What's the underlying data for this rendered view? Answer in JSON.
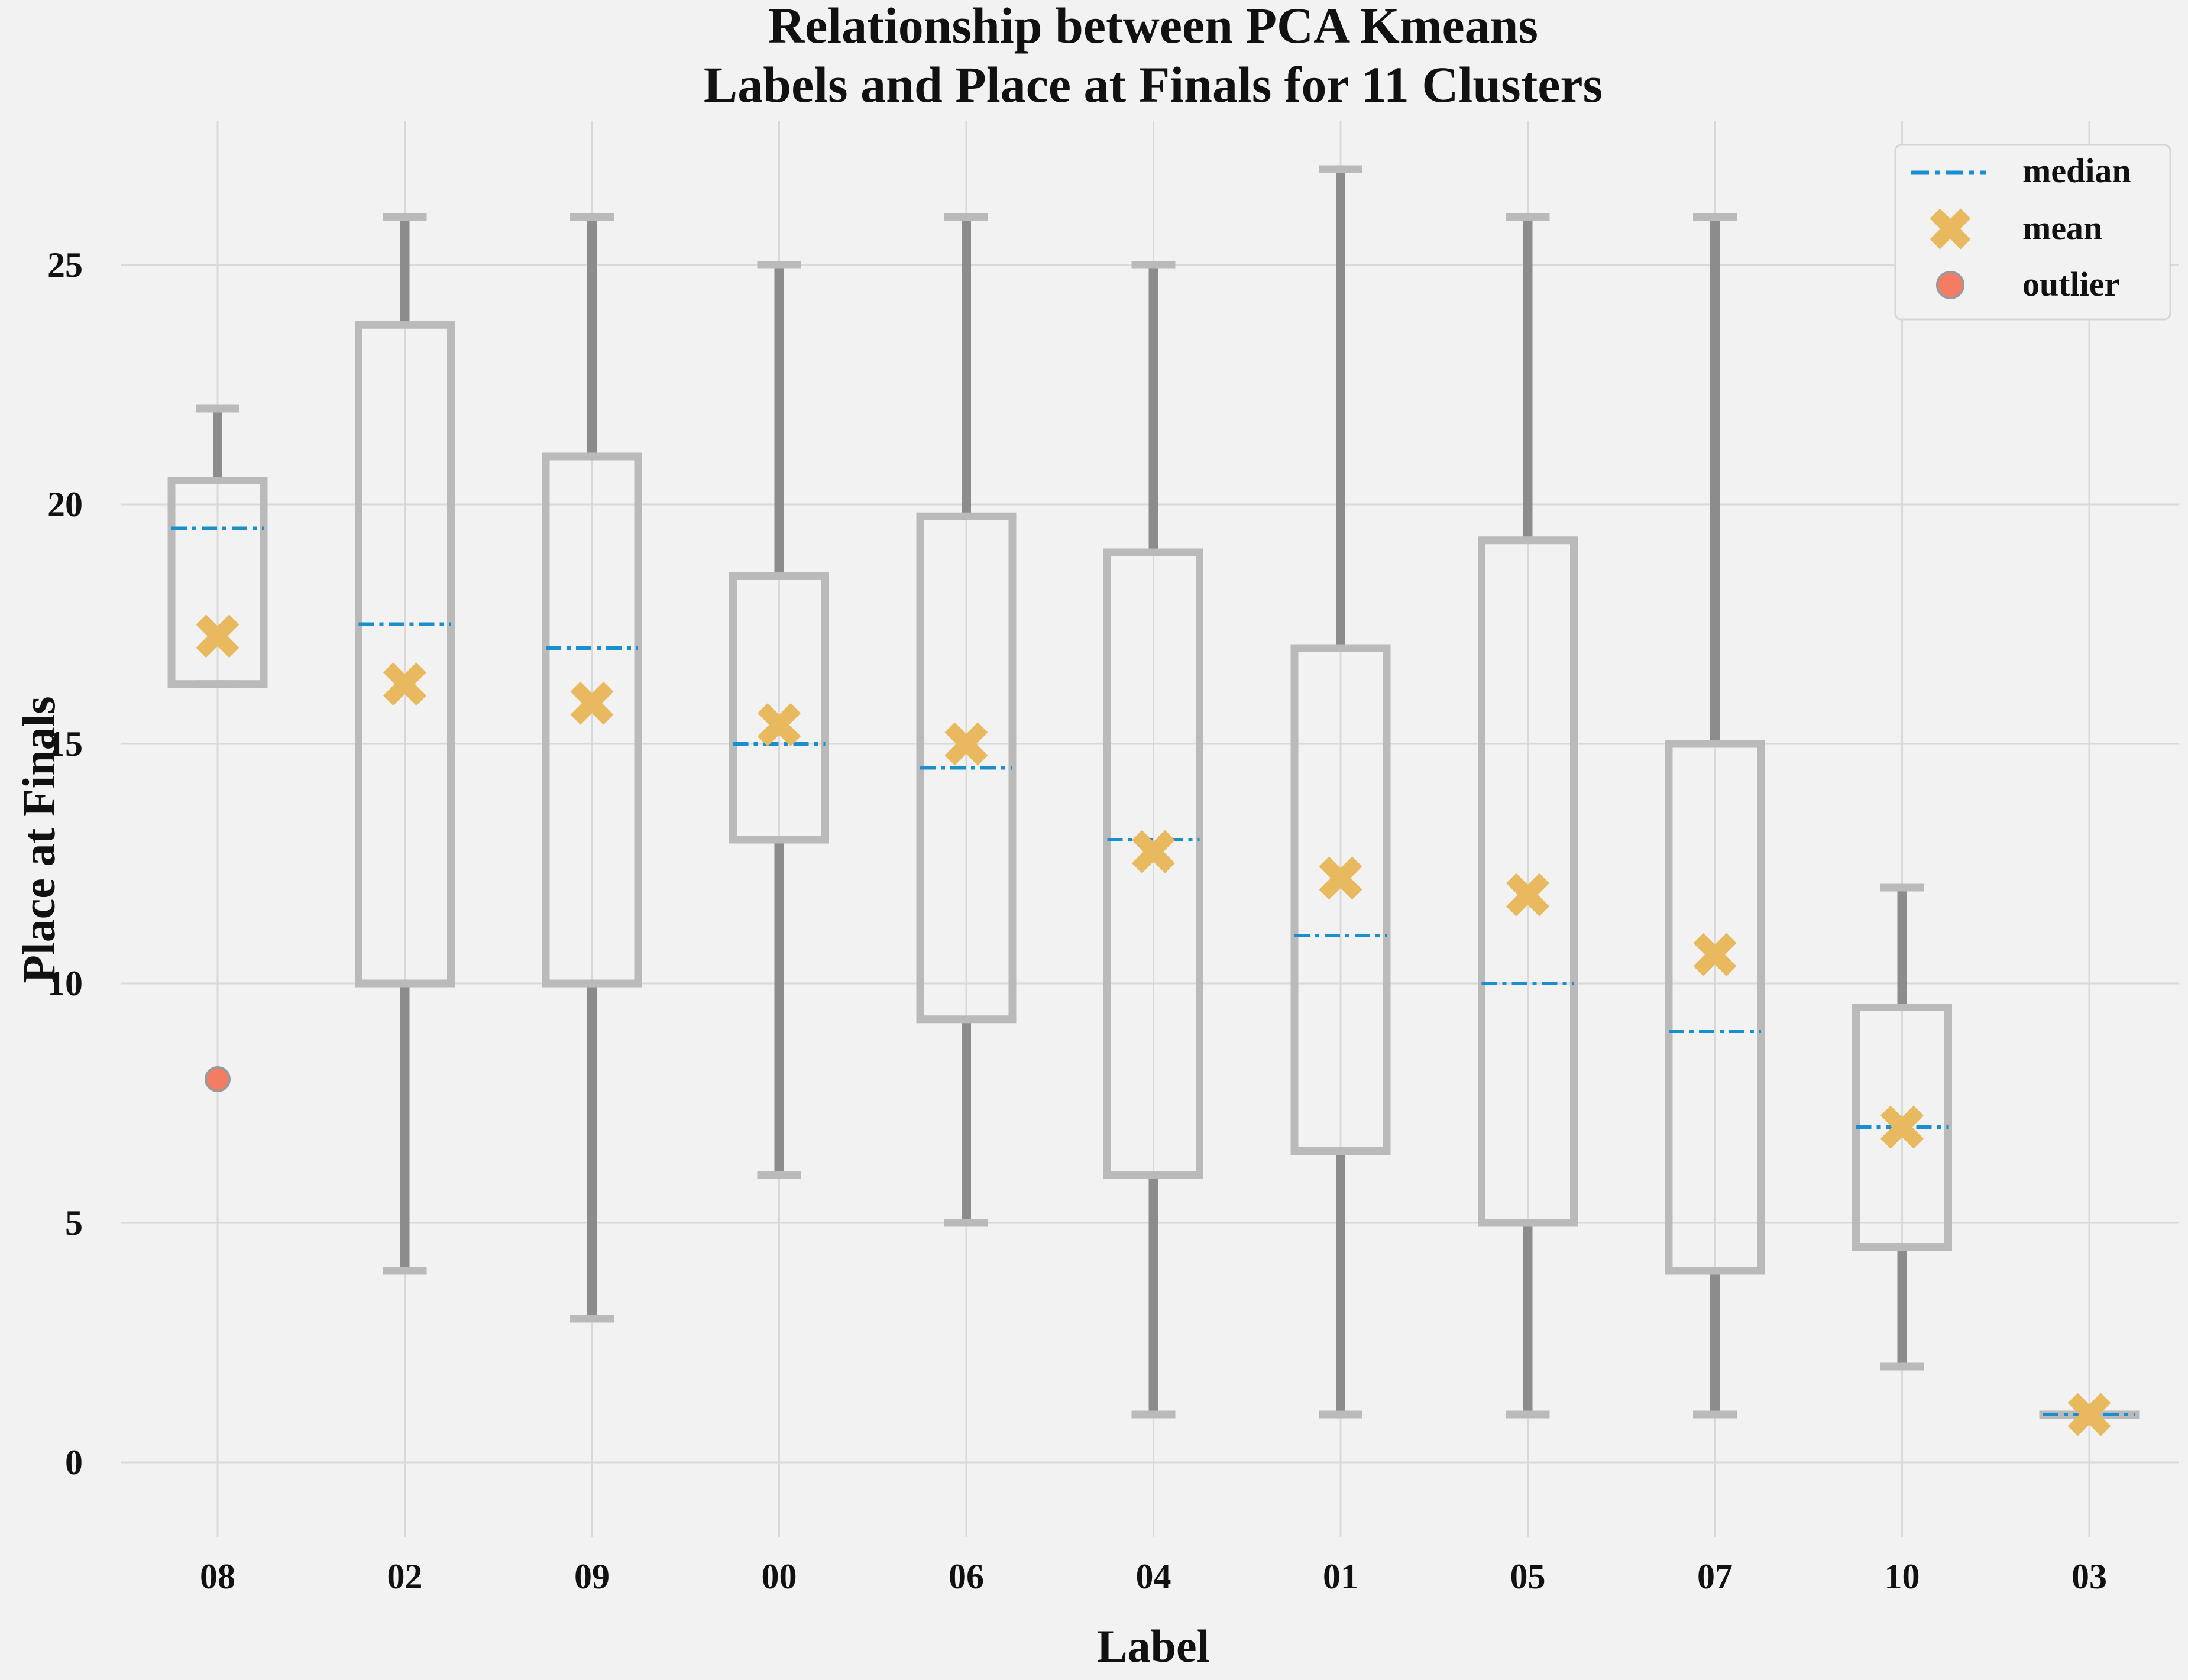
{
  "chart_data": {
    "type": "box",
    "title_lines": [
      "Relationship between PCA Kmeans",
      "Labels and Place at Finals for 11 Clusters"
    ],
    "xlabel": "Label",
    "ylabel": "Place at Finals",
    "ylim": [
      -2,
      28
    ],
    "yticks": [
      0,
      5,
      10,
      15,
      20,
      25
    ],
    "grid": true,
    "legend_position": "top-right",
    "legend": [
      {
        "key": "median",
        "label": "median"
      },
      {
        "key": "mean",
        "label": "mean"
      },
      {
        "key": "outlier",
        "label": "outlier"
      }
    ],
    "colors": {
      "background": "#f2f2f2",
      "grid": "#d9d9d9",
      "box": "#bababa",
      "whisker": "#8c8c8c",
      "cap": "#bababa",
      "median": "#1a8fd0",
      "mean": "#e8b95e",
      "outlier_fill": "#f47c62",
      "outlier_edge": "#9a9a9a"
    },
    "boxes": [
      {
        "label": "08",
        "whislo": 16.25,
        "q1": 16.25,
        "median": 19.5,
        "q3": 20.5,
        "whishi": 22,
        "mean": 17.25,
        "outliers": [
          8
        ]
      },
      {
        "label": "02",
        "whislo": 4,
        "q1": 10,
        "median": 17.5,
        "q3": 23.75,
        "whishi": 26,
        "mean": 16.25,
        "outliers": []
      },
      {
        "label": "09",
        "whislo": 3,
        "q1": 10,
        "median": 17,
        "q3": 21,
        "whishi": 26,
        "mean": 15.85,
        "outliers": []
      },
      {
        "label": "00",
        "whislo": 6,
        "q1": 13,
        "median": 15,
        "q3": 18.5,
        "whishi": 25,
        "mean": 15.4,
        "outliers": []
      },
      {
        "label": "06",
        "whislo": 5,
        "q1": 9.25,
        "median": 14.5,
        "q3": 19.75,
        "whishi": 26,
        "mean": 15,
        "outliers": []
      },
      {
        "label": "04",
        "whislo": 1,
        "q1": 6,
        "median": 13,
        "q3": 19,
        "whishi": 25,
        "mean": 12.75,
        "outliers": []
      },
      {
        "label": "01",
        "whislo": 1,
        "q1": 6.5,
        "median": 11,
        "q3": 17,
        "whishi": 27,
        "mean": 12.2,
        "outliers": []
      },
      {
        "label": "05",
        "whislo": 1,
        "q1": 5,
        "median": 10,
        "q3": 19.25,
        "whishi": 26,
        "mean": 11.85,
        "outliers": []
      },
      {
        "label": "07",
        "whislo": 1,
        "q1": 4,
        "median": 9,
        "q3": 15,
        "whishi": 26,
        "mean": 10.6,
        "outliers": []
      },
      {
        "label": "10",
        "whislo": 2,
        "q1": 4.5,
        "median": 7,
        "q3": 9.5,
        "whishi": 12,
        "mean": 7,
        "outliers": []
      },
      {
        "label": "03",
        "whislo": 1,
        "q1": 1,
        "median": 1,
        "q3": 1,
        "whishi": 1,
        "mean": 1,
        "outliers": []
      }
    ]
  }
}
